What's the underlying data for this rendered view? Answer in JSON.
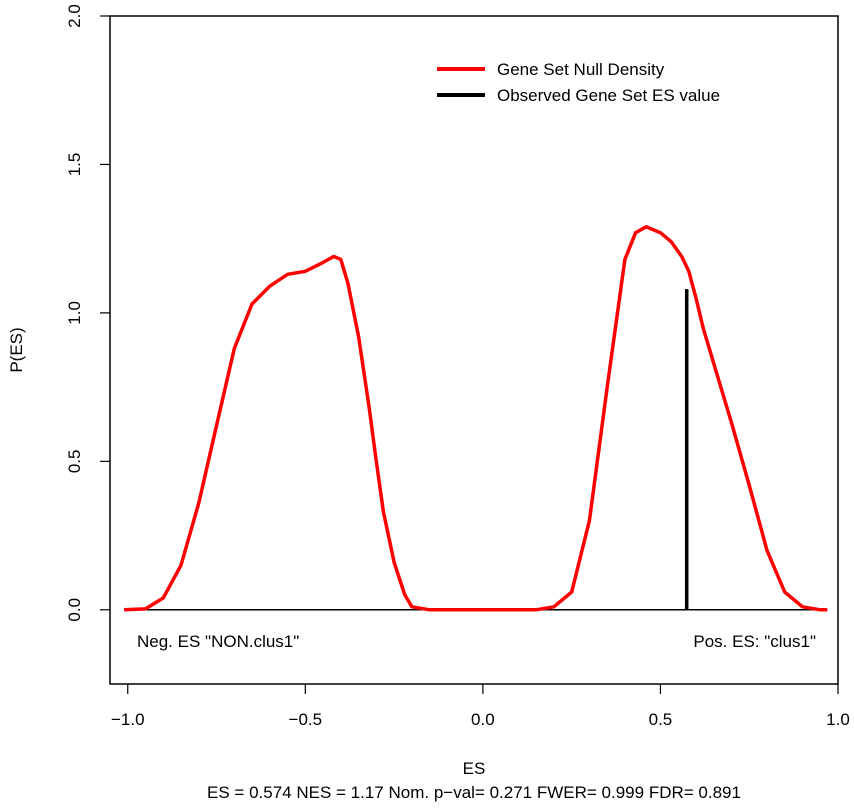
{
  "chart_data": {
    "type": "line",
    "title": "",
    "xlabel": "ES",
    "ylabel": "P(ES)",
    "subtitle": "ES = 0.574  NES = 1.17 Nom. p−val= 0.271 FWER= 0.999 FDR= 0.891",
    "xlim": [
      -1.05,
      1.0
    ],
    "ylim": [
      -0.25,
      2.0
    ],
    "xticks": [
      -1.0,
      -0.5,
      0.0,
      0.5,
      1.0
    ],
    "xtick_labels": [
      "−1.0",
      "−0.5",
      "0.0",
      "0.5",
      "1.0"
    ],
    "yticks": [
      0.0,
      0.5,
      1.0,
      1.5,
      2.0
    ],
    "ytick_labels": [
      "0.0",
      "0.5",
      "1.0",
      "1.5",
      "2.0"
    ],
    "baseline_y": 0.0,
    "legend": {
      "position": "top-right",
      "entries": [
        {
          "label": "Gene Set Null Density",
          "color": "#ff0000"
        },
        {
          "label": "Observed Gene Set ES value",
          "color": "#000000"
        }
      ]
    },
    "annotations": {
      "neg_label": "Neg. ES \"NON.clus1\"",
      "pos_label": "Pos. ES: \"clus1\""
    },
    "series": [
      {
        "name": "Gene Set Null Density",
        "color": "#ff0000",
        "x": [
          -1.01,
          -0.95,
          -0.9,
          -0.85,
          -0.8,
          -0.75,
          -0.7,
          -0.65,
          -0.6,
          -0.55,
          -0.5,
          -0.45,
          -0.42,
          -0.4,
          -0.38,
          -0.35,
          -0.32,
          -0.3,
          -0.28,
          -0.25,
          -0.22,
          -0.2,
          -0.15,
          -0.1,
          -0.05,
          0.0,
          0.05,
          0.1,
          0.15,
          0.2,
          0.25,
          0.3,
          0.35,
          0.4,
          0.43,
          0.46,
          0.5,
          0.53,
          0.56,
          0.58,
          0.6,
          0.62,
          0.65,
          0.7,
          0.75,
          0.8,
          0.85,
          0.9,
          0.95,
          0.97
        ],
        "y": [
          0.0,
          0.003,
          0.04,
          0.15,
          0.36,
          0.62,
          0.88,
          1.03,
          1.09,
          1.13,
          1.14,
          1.17,
          1.19,
          1.18,
          1.1,
          0.92,
          0.68,
          0.5,
          0.33,
          0.16,
          0.05,
          0.01,
          0.0,
          0.0,
          0.0,
          0.0,
          0.0,
          0.0,
          0.0,
          0.01,
          0.06,
          0.3,
          0.75,
          1.18,
          1.27,
          1.29,
          1.27,
          1.24,
          1.19,
          1.14,
          1.05,
          0.95,
          0.83,
          0.63,
          0.42,
          0.2,
          0.06,
          0.01,
          0.0,
          0.0
        ]
      },
      {
        "name": "Observed Gene Set ES value",
        "color": "#000000",
        "x": [
          0.574,
          0.574
        ],
        "y": [
          0.0,
          1.08
        ]
      }
    ]
  }
}
